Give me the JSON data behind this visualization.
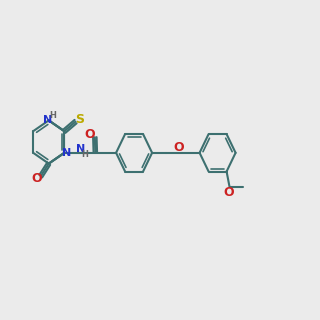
{
  "bg_color": "#ebebeb",
  "bond_color": "#3d7070",
  "bond_width": 1.5,
  "n_color": "#2233cc",
  "o_color": "#cc2222",
  "s_color": "#bbaa00",
  "h_color": "#666666",
  "font_size": 8,
  "fig_width": 3.0,
  "fig_height": 3.0,
  "xlim": [
    0,
    12
  ],
  "ylim": [
    0,
    10
  ]
}
